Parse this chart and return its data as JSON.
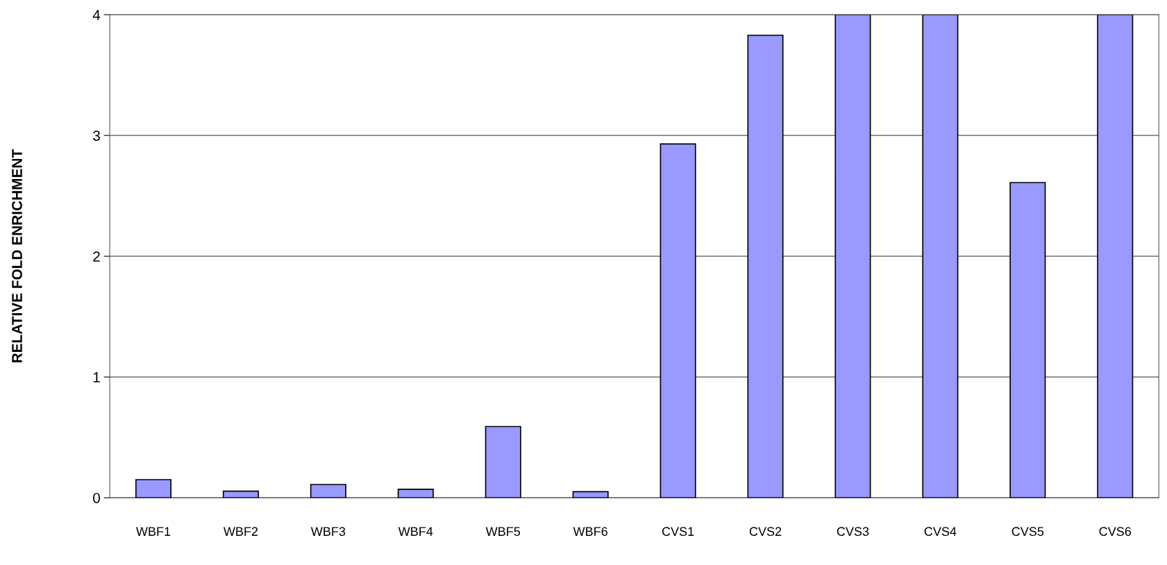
{
  "chart_data": {
    "type": "bar",
    "ylabel": "RELATIVE FOLD ENRICHMENT",
    "categories": [
      "WBF1",
      "WBF2",
      "WBF3",
      "WBF4",
      "WBF5",
      "WBF6",
      "CVS1",
      "CVS2",
      "CVS3",
      "CVS4",
      "CVS5",
      "CVS6"
    ],
    "values": [
      0.15,
      0.055,
      0.11,
      0.07,
      0.59,
      0.05,
      2.93,
      3.83,
      4,
      4,
      2.61,
      4
    ],
    "color": "#9999ff",
    "ylim": [
      0,
      4
    ],
    "yticks": [
      0,
      1,
      2,
      3,
      4
    ],
    "grid": "y",
    "legend": false
  }
}
